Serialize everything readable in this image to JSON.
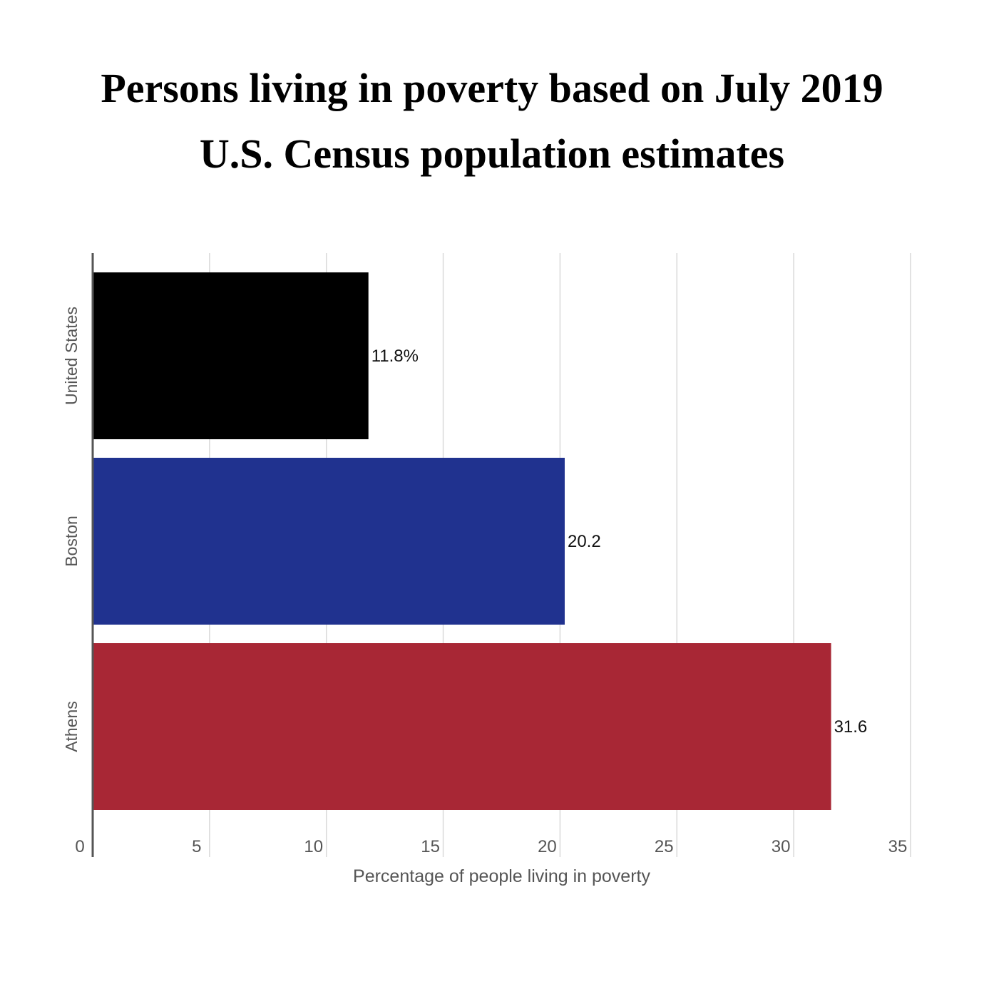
{
  "chart_data": {
    "type": "bar",
    "orientation": "horizontal",
    "title_lines": [
      "Persons living in poverty based on July 2019",
      "U.S. Census population estimates"
    ],
    "categories": [
      "United States",
      "Boston",
      "Athens"
    ],
    "values": [
      11.8,
      20.2,
      31.6
    ],
    "value_labels": [
      "11.8%",
      "20.2",
      "31.6"
    ],
    "colors": [
      "#000000",
      "#20328f",
      "#a82735"
    ],
    "xlabel": "Percentage of people living in poverty",
    "ylabel": "",
    "xlim": [
      0,
      35
    ],
    "xticks": [
      0,
      5,
      10,
      15,
      20,
      25,
      30,
      35
    ],
    "xtick_labels": [
      "0",
      "5",
      "10",
      "15",
      "20",
      "25",
      "30",
      "35"
    ],
    "grid": true
  }
}
